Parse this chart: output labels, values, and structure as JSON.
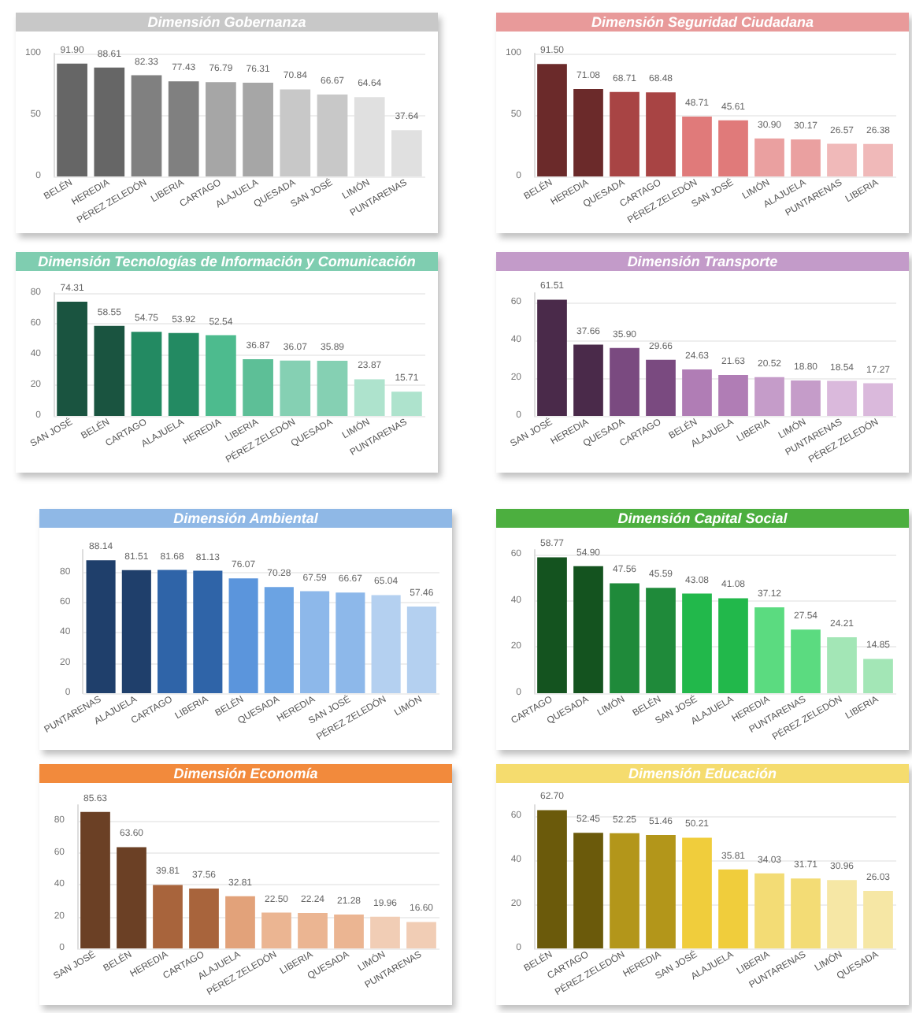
{
  "chart_data": [
    {
      "type": "bar",
      "title": "Dimensión Gobernanza",
      "categories": [
        "BELÉN",
        "HEREDIA",
        "PÉREZ ZELEDÓN",
        "LIBERIA",
        "CARTAGO",
        "ALAJUELA",
        "QUESADA",
        "SAN JOSÉ",
        "LIMÓN",
        "PUNTARENAS"
      ],
      "values": [
        91.9,
        88.61,
        82.33,
        77.43,
        76.79,
        76.31,
        70.84,
        66.67,
        64.64,
        37.64
      ],
      "value_labels": [
        "91.90",
        "88.61",
        "82.33",
        "77.43",
        "76.79",
        "76.31",
        "70.84",
        "66.67",
        "64.64",
        "37.64"
      ],
      "colors": [
        "#666666",
        "#666666",
        "#808080",
        "#808080",
        "#a6a6a6",
        "#a6a6a6",
        "#c8c8c8",
        "#c8c8c8",
        "#e0e0e0",
        "#e0e0e0"
      ],
      "ylim": [
        0,
        100
      ],
      "yticks": [
        0,
        50,
        100
      ],
      "grid": "y"
    },
    {
      "type": "bar",
      "title": "Dimensión Seguridad Ciudadana",
      "categories": [
        "BELÉN",
        "HEREDIA",
        "QUESADA",
        "CARTAGO",
        "PÉREZ ZELEDÓN",
        "SAN JOSÉ",
        "LIMÓN",
        "ALAJUELA",
        "PUNTARENAS",
        "LIBERIA"
      ],
      "values": [
        91.5,
        71.08,
        68.71,
        68.48,
        48.71,
        45.61,
        30.9,
        30.17,
        26.57,
        26.38
      ],
      "value_labels": [
        "91.50",
        "71.08",
        "68.71",
        "68.48",
        "48.71",
        "45.61",
        "30.90",
        "30.17",
        "26.57",
        "26.38"
      ],
      "colors": [
        "#6b2a2a",
        "#6b2a2a",
        "#a84444",
        "#a84444",
        "#e07a7a",
        "#e07a7a",
        "#eaa0a0",
        "#eaa0a0",
        "#f0b9b9",
        "#f0b9b9"
      ],
      "ylim": [
        0,
        100
      ],
      "yticks": [
        0,
        50,
        100
      ],
      "grid": "y"
    },
    {
      "type": "bar",
      "title": "Dimensión Tecnologías de Información y Comunicación",
      "categories": [
        "SAN JOSÉ",
        "BELÉN",
        "CARTAGO",
        "ALAJUELA",
        "HEREDIA",
        "LIBERIA",
        "PÉREZ ZELEDÓN",
        "QUESADA",
        "LIMÓN",
        "PUNTARENAS"
      ],
      "values": [
        74.31,
        58.55,
        54.75,
        53.92,
        52.54,
        36.87,
        36.07,
        35.89,
        23.87,
        15.71
      ],
      "value_labels": [
        "74.31",
        "58.55",
        "54.75",
        "53.92",
        "52.54",
        "36.87",
        "36.07",
        "35.89",
        "23.87",
        "15.71"
      ],
      "colors": [
        "#1a5440",
        "#1a5440",
        "#238a62",
        "#238a62",
        "#4dbb8e",
        "#5dbf97",
        "#85d0b3",
        "#85d0b3",
        "#aee3cd",
        "#aee3cd"
      ],
      "ylim": [
        0,
        80
      ],
      "yticks": [
        0,
        20,
        40,
        60,
        80
      ],
      "grid": "y"
    },
    {
      "type": "bar",
      "title": "Dimensión Transporte",
      "categories": [
        "SAN JOSÉ",
        "HEREDIA",
        "QUESADA",
        "CARTAGO",
        "BELÉN",
        "ALAJUELA",
        "LIBERIA",
        "LIMÓN",
        "PUNTARENAS",
        "PÉREZ ZELEDÓN"
      ],
      "values": [
        61.51,
        37.66,
        35.9,
        29.66,
        24.63,
        21.63,
        20.52,
        18.8,
        18.54,
        17.27
      ],
      "value_labels": [
        "61.51",
        "37.66",
        "35.90",
        "29.66",
        "24.63",
        "21.63",
        "20.52",
        "18.80",
        "18.54",
        "17.27"
      ],
      "colors": [
        "#4a2a4a",
        "#4a2a4a",
        "#7a4a80",
        "#7a4a80",
        "#b07db5",
        "#b07db5",
        "#c59cc9",
        "#c59cc9",
        "#dab9dc",
        "#dab9dc"
      ],
      "ylim": [
        0,
        65
      ],
      "yticks": [
        0,
        20,
        40,
        60
      ],
      "grid": "y"
    },
    {
      "type": "bar",
      "title": "Dimensión Ambiental",
      "categories": [
        "PUNTARENAS",
        "ALAJUELA",
        "CARTAGO",
        "LIBERIA",
        "BELÉN",
        "QUESADA",
        "HEREDIA",
        "SAN JOSÉ",
        "PÉREZ ZELEDÓN",
        "LIMÓN"
      ],
      "values": [
        88.14,
        81.51,
        81.68,
        81.13,
        76.07,
        70.28,
        67.59,
        66.67,
        65.04,
        57.46
      ],
      "value_labels": [
        "88.14",
        "81.51",
        "81.68",
        "81.13",
        "76.07",
        "70.28",
        "67.59",
        "66.67",
        "65.04",
        "57.46"
      ],
      "colors": [
        "#1f3f6b",
        "#1f3f6b",
        "#2f64a8",
        "#2f64a8",
        "#5b95dc",
        "#6ba3e3",
        "#8db8ea",
        "#8db8ea",
        "#b4d0f0",
        "#b4d0f0"
      ],
      "ylim": [
        0,
        95
      ],
      "yticks": [
        0,
        20,
        40,
        60,
        80
      ],
      "grid": "y"
    },
    {
      "type": "bar",
      "title": "Dimensión Capital Social",
      "categories": [
        "CARTAGO",
        "QUESADA",
        "LIMÓN",
        "BELÉN",
        "SAN JOSÉ",
        "ALAJUELA",
        "HEREDIA",
        "PUNTARENAS",
        "PÉREZ ZELEDÓN",
        "LIBERIA"
      ],
      "values": [
        58.77,
        54.9,
        47.56,
        45.59,
        43.08,
        41.08,
        37.12,
        27.54,
        24.21,
        14.85
      ],
      "value_labels": [
        "58.77",
        "54.90",
        "47.56",
        "45.59",
        "43.08",
        "41.08",
        "37.12",
        "27.54",
        "24.21",
        "14.85"
      ],
      "colors": [
        "#14531f",
        "#14531f",
        "#1f8a3a",
        "#1f8a3a",
        "#22b84b",
        "#22b84b",
        "#5bdb80",
        "#5bdb80",
        "#a3e6b6",
        "#a3e6b6"
      ],
      "ylim": [
        0,
        62
      ],
      "yticks": [
        0,
        20,
        40,
        60
      ],
      "grid": "y"
    },
    {
      "type": "bar",
      "title": "Dimensión Economía",
      "categories": [
        "SAN JOSÉ",
        "BELÉN",
        "HEREDIA",
        "CARTAGO",
        "ALAJUELA",
        "PÉREZ ZELEDÓN",
        "LIBERIA",
        "QUESADA",
        "LIMÓN",
        "PUNTARENAS"
      ],
      "values": [
        85.63,
        63.6,
        39.81,
        37.56,
        32.81,
        22.5,
        22.24,
        21.28,
        19.96,
        16.6
      ],
      "value_labels": [
        "85.63",
        "63.60",
        "39.81",
        "37.56",
        "32.81",
        "22.50",
        "22.24",
        "21.28",
        "19.96",
        "16.60"
      ],
      "colors": [
        "#6b4025",
        "#6b4025",
        "#a8643c",
        "#a8643c",
        "#e2a27a",
        "#ebb592",
        "#ebb592",
        "#ebb592",
        "#f1cdb5",
        "#f1cdb5"
      ],
      "ylim": [
        0,
        90
      ],
      "yticks": [
        0,
        20,
        40,
        60,
        80
      ],
      "grid": "y"
    },
    {
      "type": "bar",
      "title": "Dimensión Educación",
      "categories": [
        "BELÉN",
        "CARTAGO",
        "PÉREZ ZELEDÓN",
        "HEREDIA",
        "SAN JOSÉ",
        "ALAJUELA",
        "LIBERIA",
        "PUNTARENAS",
        "LIMÓN",
        "QUESADA"
      ],
      "values": [
        62.7,
        52.45,
        52.25,
        51.46,
        50.21,
        35.81,
        34.03,
        31.71,
        30.96,
        26.03
      ],
      "value_labels": [
        "62.70",
        "52.45",
        "52.25",
        "51.46",
        "50.21",
        "35.81",
        "34.03",
        "31.71",
        "30.96",
        "26.03"
      ],
      "colors": [
        "#6b5a0b",
        "#6b5a0b",
        "#b3961a",
        "#b3961a",
        "#f0cd3c",
        "#f0cd3c",
        "#f3dc75",
        "#f3dc75",
        "#f6e7a5",
        "#f6e7a5"
      ],
      "ylim": [
        0,
        65
      ],
      "yticks": [
        0,
        20,
        40,
        60
      ],
      "grid": "y"
    }
  ]
}
